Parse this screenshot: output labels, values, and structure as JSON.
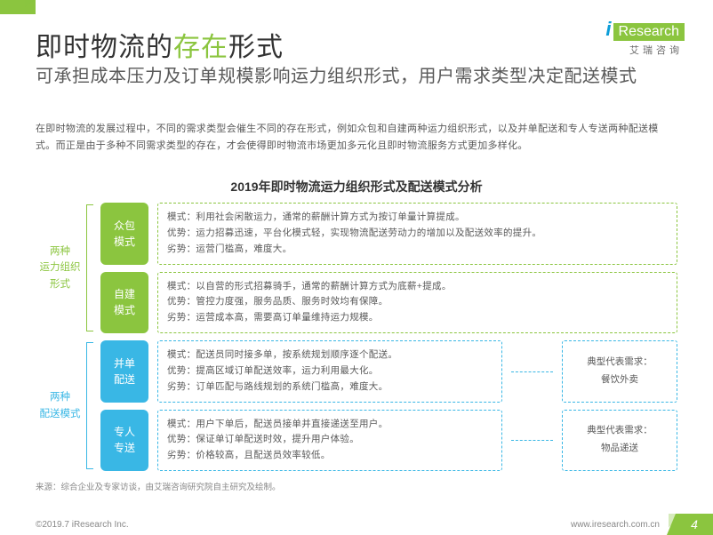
{
  "logo": {
    "prefix": "i",
    "word": "Research",
    "sub": "艾瑞咨询"
  },
  "title_parts": {
    "black1": "即时物流的",
    "green": "存在",
    "black2": "形式"
  },
  "title_colors": {
    "accent": "#8bc53f",
    "plain": "#333333"
  },
  "subtitle": "可承担成本压力及订单规模影响运力组织形式，用户需求类型决定配送模式",
  "paragraph": "在即时物流的发展过程中，不同的需求类型会催生不同的存在形式，例如众包和自建两种运力组织形式，以及并单配送和专人专送两种配送模式。而正是由于多种不同需求类型的存在，才会使得即时物流市场更加多元化且即时物流服务方式更加多样化。",
  "chart_title": "2019年即时物流运力组织形式及配送模式分析",
  "sections": [
    {
      "side": "两种\n运力组织\n形式",
      "color": "green",
      "models": [
        {
          "tag": "众包\n模式",
          "lines": [
            "模式：利用社会闲散运力，通常的薪酬计算方式为按订单量计算提成。",
            "优势：运力招募迅速，平台化模式轻，实现物流配送劳动力的增加以及配送效率的提升。",
            "劣势：运营门槛高，难度大。"
          ]
        },
        {
          "tag": "自建\n模式",
          "lines": [
            "模式：以自营的形式招募骑手，通常的薪酬计算方式为底薪+提成。",
            "优势：管控力度强，服务品质、服务时效均有保障。",
            "劣势：运营成本高，需要高订单量维持运力规模。"
          ]
        }
      ]
    },
    {
      "side": "两种\n配送模式",
      "color": "blue",
      "models": [
        {
          "tag": "并单\n配送",
          "lines": [
            "模式：配送员同时接多单，按系统规划顺序逐个配送。",
            "优势：提高区域订单配送效率，运力利用最大化。",
            "劣势：订单匹配与路线规划的系统门槛高，难度大。"
          ],
          "demand": {
            "title": "典型代表需求：",
            "value": "餐饮外卖"
          }
        },
        {
          "tag": "专人\n专送",
          "lines": [
            "模式：用户下单后，配送员接单并直接递送至用户。",
            "优势：保证单订单配送时效，提升用户体验。",
            "劣势：价格较高，且配送员效率较低。"
          ],
          "demand": {
            "title": "典型代表需求：",
            "value": "物品递送"
          }
        }
      ]
    }
  ],
  "source": "来源：综合企业及专家访谈，由艾瑞咨询研究院自主研究及绘制。",
  "footer": {
    "copyright": "©2019.7 iResearch Inc.",
    "url": "www.iresearch.com.cn",
    "page": "4"
  },
  "colors": {
    "green": "#8bc53f",
    "blue": "#39b7e5",
    "text_gray": "#595959",
    "light_gray": "#888888"
  }
}
